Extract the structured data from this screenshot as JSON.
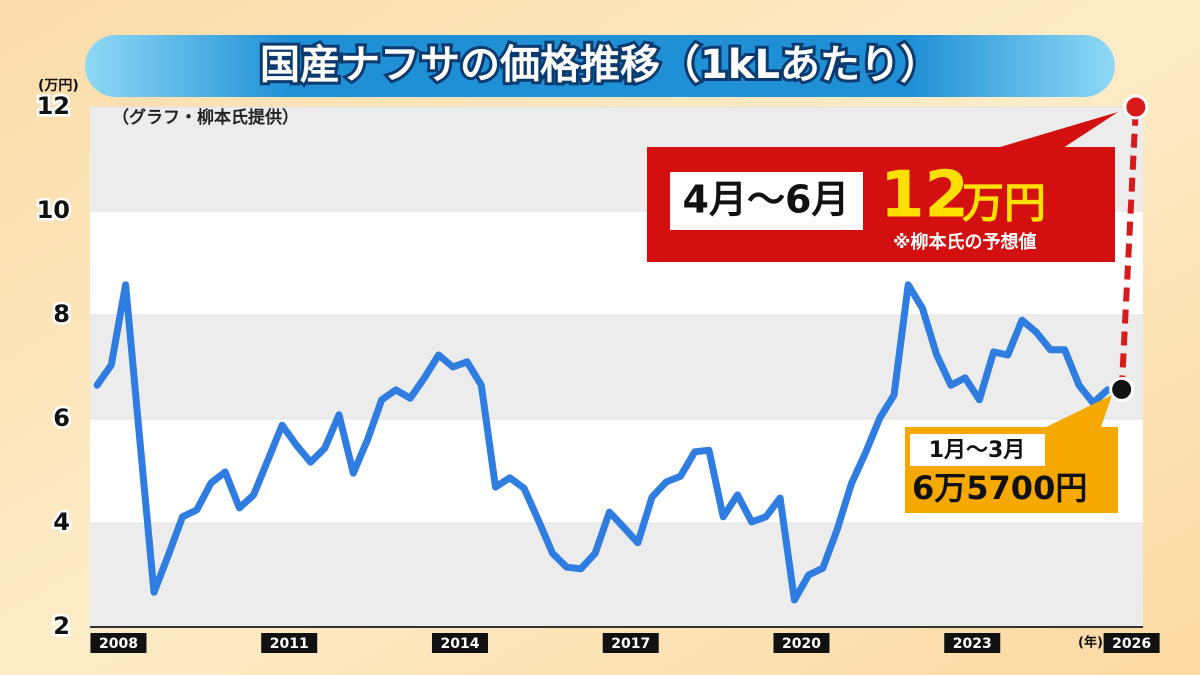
{
  "chart_data": {
    "type": "line",
    "title": "国産ナフサの価格推移（1kLあたり）",
    "y_unit": "(万円)",
    "source": "（グラフ・柳本氏提供）",
    "x_unit": "(年)",
    "x": [
      2008.125,
      2008.375,
      2008.625,
      2008.875,
      2009.125,
      2009.375,
      2009.625,
      2009.875,
      2010.125,
      2010.375,
      2010.625,
      2010.875,
      2011.125,
      2011.375,
      2011.625,
      2011.875,
      2012.125,
      2012.375,
      2012.625,
      2012.875,
      2013.125,
      2013.375,
      2013.625,
      2013.875,
      2014.125,
      2014.375,
      2014.625,
      2014.875,
      2015.125,
      2015.375,
      2015.625,
      2015.875,
      2016.125,
      2016.375,
      2016.625,
      2016.875,
      2017.125,
      2017.375,
      2017.625,
      2017.875,
      2018.125,
      2018.375,
      2018.625,
      2018.875,
      2019.125,
      2019.375,
      2019.625,
      2019.875,
      2020.125,
      2020.375,
      2020.625,
      2020.875,
      2021.125,
      2021.375,
      2021.625,
      2021.875,
      2022.125,
      2022.375,
      2022.625,
      2022.875,
      2023.125,
      2023.375,
      2023.625,
      2023.875,
      2024.125,
      2024.375,
      2024.625,
      2024.875,
      2025.125,
      2025.375,
      2025.625,
      2025.875,
      2026.125,
      2026.375
    ],
    "series": [
      {
        "color": "#2f7de1",
        "values": [
          6.65,
          7.04,
          8.58,
          5.6,
          2.67,
          3.38,
          4.12,
          4.25,
          4.77,
          4.98,
          4.29,
          4.54,
          5.21,
          5.88,
          5.5,
          5.17,
          5.44,
          6.08,
          4.96,
          5.6,
          6.37,
          6.56,
          6.4,
          6.79,
          7.23,
          7,
          7.1,
          6.65,
          4.69,
          4.87,
          4.67,
          4.06,
          3.42,
          3.15,
          3.12,
          3.42,
          4.21,
          3.92,
          3.62,
          4.5,
          4.79,
          4.9,
          5.37,
          5.4,
          4.12,
          4.54,
          4.02,
          4.12,
          4.48,
          2.52,
          3,
          3.13,
          3.87,
          4.75,
          5.35,
          6.02,
          6.46,
          8.58,
          8.13,
          7.23,
          6.65,
          6.79,
          6.37,
          7.29,
          7.23,
          7.9,
          7.67,
          7.33,
          7.33,
          6.65,
          6.31,
          6.56,
          6.57,
          null
        ]
      },
      {
        "color": "#d71a1a",
        "dashed": true,
        "start_marker_color": "#111111",
        "values": [
          null,
          null,
          null,
          null,
          null,
          null,
          null,
          null,
          null,
          null,
          null,
          null,
          null,
          null,
          null,
          null,
          null,
          null,
          null,
          null,
          null,
          null,
          null,
          null,
          null,
          null,
          null,
          null,
          null,
          null,
          null,
          null,
          null,
          null,
          null,
          null,
          null,
          null,
          null,
          null,
          null,
          null,
          null,
          null,
          null,
          null,
          null,
          null,
          null,
          null,
          null,
          null,
          null,
          null,
          null,
          null,
          null,
          null,
          null,
          null,
          null,
          null,
          null,
          null,
          null,
          null,
          null,
          null,
          null,
          null,
          null,
          null,
          6.57,
          12
        ]
      }
    ],
    "xlim": [
      2008,
      2026.5
    ],
    "xticks": [
      {
        "value": 2008.5,
        "label": "2008"
      },
      {
        "value": 2011.5,
        "label": "2011"
      },
      {
        "value": 2014.5,
        "label": "2014"
      },
      {
        "value": 2017.5,
        "label": "2017"
      },
      {
        "value": 2020.5,
        "label": "2020"
      },
      {
        "value": 2023.5,
        "label": "2023"
      },
      {
        "value": 2026.3,
        "label": "2026"
      }
    ],
    "ylim": [
      2,
      12
    ],
    "yticks": [
      2,
      4,
      6,
      8,
      10,
      12
    ],
    "grid": true,
    "annotations": {
      "forecast_period": "4月～6月",
      "forecast_value": "12",
      "forecast_unit": "万円",
      "forecast_note": "※柳本氏の予想値",
      "latest_period": "1月～3月",
      "latest_value": "6万5700円"
    }
  }
}
